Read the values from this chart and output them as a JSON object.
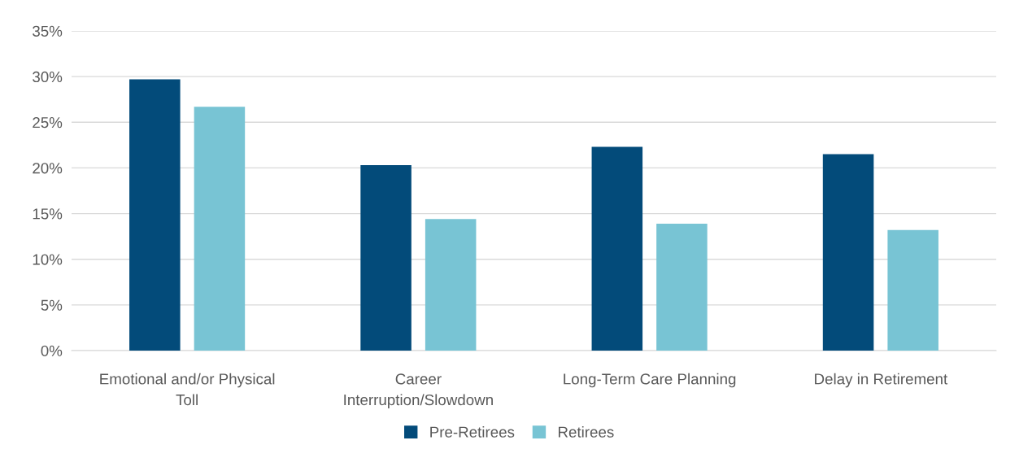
{
  "chart_data": {
    "type": "bar",
    "categories": [
      "Emotional and/or Physical Toll",
      "Career Interruption/Slowdown",
      "Long-Term Care Planning",
      "Delay in Retirement"
    ],
    "series": [
      {
        "name": "Pre-Retirees",
        "color": "#034b7a",
        "values": [
          29.7,
          20.3,
          22.3,
          21.5
        ]
      },
      {
        "name": "Retirees",
        "color": "#78c4d4",
        "values": [
          26.7,
          14.4,
          13.9,
          13.2
        ]
      }
    ],
    "ylim": [
      0,
      35
    ],
    "yticks": [
      {
        "value": 0,
        "label": "0%"
      },
      {
        "value": 5,
        "label": "5%"
      },
      {
        "value": 10,
        "label": "10%"
      },
      {
        "value": 15,
        "label": "15%"
      },
      {
        "value": 20,
        "label": "20%"
      },
      {
        "value": 25,
        "label": "25%"
      },
      {
        "value": 30,
        "label": "30%"
      },
      {
        "value": 35,
        "label": "35%"
      }
    ],
    "grid": "y",
    "legend": "bottom"
  }
}
